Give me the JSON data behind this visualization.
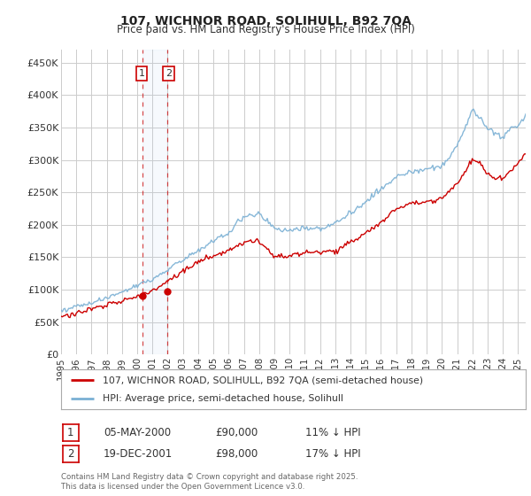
{
  "title": "107, WICHNOR ROAD, SOLIHULL, B92 7QA",
  "subtitle": "Price paid vs. HM Land Registry's House Price Index (HPI)",
  "ylabel_ticks": [
    "£0",
    "£50K",
    "£100K",
    "£150K",
    "£200K",
    "£250K",
    "£300K",
    "£350K",
    "£400K",
    "£450K"
  ],
  "ytick_values": [
    0,
    50000,
    100000,
    150000,
    200000,
    250000,
    300000,
    350000,
    400000,
    450000
  ],
  "ylim": [
    0,
    470000
  ],
  "xlim_start": 1995.0,
  "xlim_end": 2025.5,
  "background_color": "#ffffff",
  "plot_bg_color": "#ffffff",
  "grid_color": "#cccccc",
  "red_line_color": "#cc0000",
  "blue_line_color": "#7ab0d4",
  "sale1_x": 2000.37,
  "sale1_y": 90000,
  "sale2_x": 2001.97,
  "sale2_y": 98000,
  "sale1_date": "05-MAY-2000",
  "sale1_price": "£90,000",
  "sale1_pct": "11% ↓ HPI",
  "sale2_date": "19-DEC-2001",
  "sale2_price": "£98,000",
  "sale2_pct": "17% ↓ HPI",
  "legend_line1": "107, WICHNOR ROAD, SOLIHULL, B92 7QA (semi-detached house)",
  "legend_line2": "HPI: Average price, semi-detached house, Solihull",
  "footer": "Contains HM Land Registry data © Crown copyright and database right 2025.\nThis data is licensed under the Open Government Licence v3.0.",
  "xtick_years": [
    1995,
    1996,
    1997,
    1998,
    1999,
    2000,
    2001,
    2002,
    2003,
    2004,
    2005,
    2006,
    2007,
    2008,
    2009,
    2010,
    2011,
    2012,
    2013,
    2014,
    2015,
    2016,
    2017,
    2018,
    2019,
    2020,
    2021,
    2022,
    2023,
    2024,
    2025
  ]
}
